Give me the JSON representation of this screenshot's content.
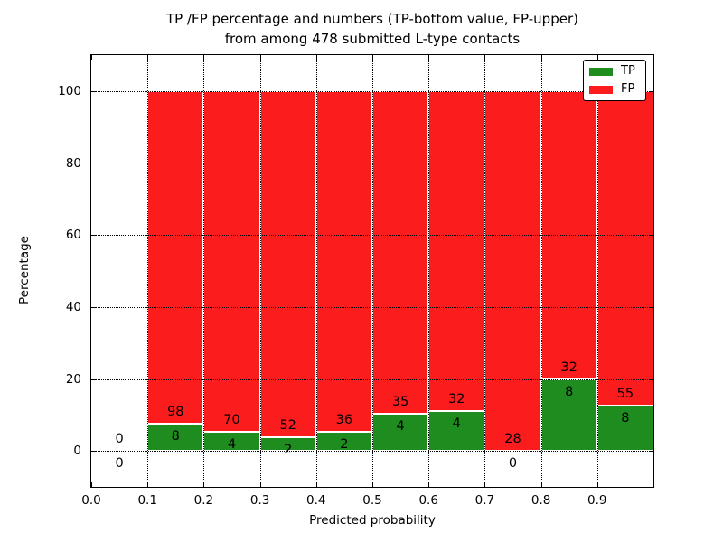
{
  "figure": {
    "title_line1": "TP /FP percentage and numbers (TP-bottom value, FP-upper)",
    "title_line2": "from among 478 submitted L-type contacts"
  },
  "chart_data": {
    "type": "bar",
    "subtype": "stacked-percentage-histogram",
    "title": "TP /FP percentage and numbers (TP-bottom value, FP-upper)\nfrom among 478 submitted L-type contacts",
    "xlabel": "Predicted probability",
    "ylabel": "Percentage",
    "total_contacts": 478,
    "bins": [
      0.0,
      0.1,
      0.2,
      0.3,
      0.4,
      0.5,
      0.6,
      0.7,
      0.8,
      0.9
    ],
    "bin_width": 0.1,
    "series": [
      {
        "name": "TP",
        "color": "#1e8c1e",
        "counts": [
          0,
          8,
          4,
          2,
          2,
          4,
          4,
          0,
          8,
          8
        ]
      },
      {
        "name": "FP",
        "color": "#fb1d1d",
        "counts": [
          0,
          98,
          70,
          52,
          36,
          35,
          32,
          28,
          32,
          55
        ]
      }
    ],
    "tp_percent_of_bin": [
      0,
      7.5,
      5.4,
      3.7,
      5.3,
      10.3,
      11.1,
      0,
      20.0,
      12.7
    ],
    "bars_stack_to_percent": 100,
    "xlim": [
      0.0,
      1.0
    ],
    "ylim": [
      -10,
      110
    ],
    "xticks": [
      "0.0",
      "0.1",
      "0.2",
      "0.3",
      "0.4",
      "0.5",
      "0.6",
      "0.7",
      "0.8",
      "0.9"
    ],
    "yticks": [
      0,
      20,
      40,
      60,
      80,
      100
    ],
    "grid": "dotted",
    "legend": {
      "position": "upper right",
      "entries": [
        {
          "label": "TP",
          "color": "#1e8c1e"
        },
        {
          "label": "FP",
          "color": "#fb1d1d"
        }
      ]
    }
  }
}
